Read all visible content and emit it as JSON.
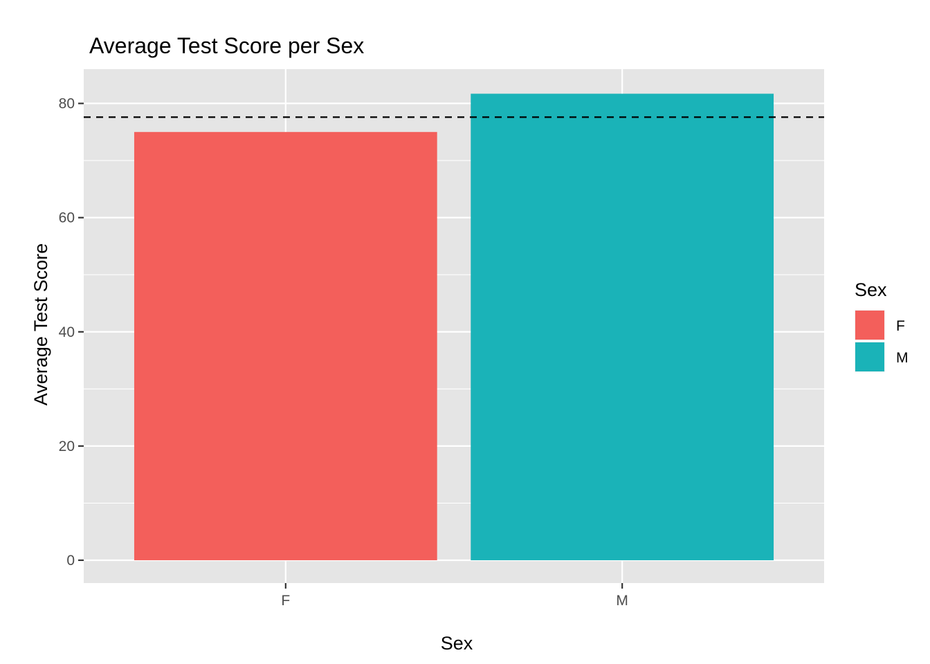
{
  "chart_data": {
    "type": "bar",
    "title": "Average Test Score per Sex",
    "xlabel": "Sex",
    "ylabel": "Average Test Score",
    "categories": [
      "F",
      "M"
    ],
    "values": [
      75,
      81.7
    ],
    "colors": [
      "#F35F5B",
      "#1AB3B8"
    ],
    "ylim": [
      -4,
      86
    ],
    "yticks": [
      0,
      20,
      40,
      60,
      80
    ],
    "ytick_labels": [
      "0",
      "20",
      "40",
      "60",
      "80"
    ],
    "reference_line": {
      "y": 77.6,
      "style": "dashed",
      "color": "#000000"
    },
    "grid": true,
    "panel_background": "#E5E5E5",
    "legend": {
      "title": "Sex",
      "placement": "right",
      "entries": [
        {
          "label": "F",
          "color": "#F35F5B"
        },
        {
          "label": "M",
          "color": "#1AB3B8"
        }
      ]
    }
  }
}
